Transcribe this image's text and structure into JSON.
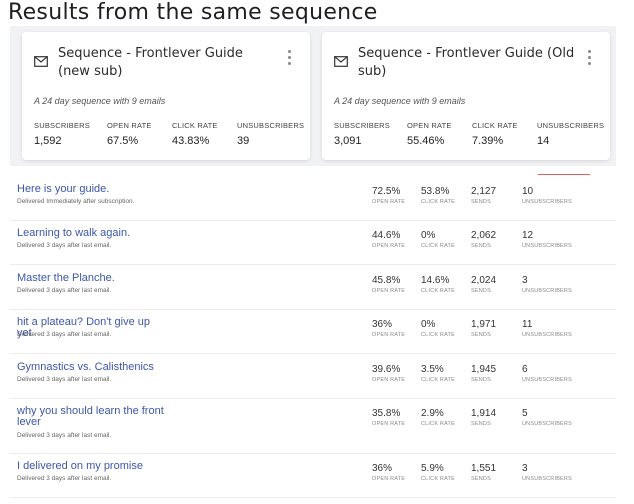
{
  "page": {
    "title": "Results from the same sequence"
  },
  "cards": [
    {
      "icon": "envelope-icon",
      "title": "Sequence - Frontlever Guide (new sub)",
      "description": "A 24 day sequence with 9 emails",
      "metrics": [
        {
          "label": "SUBSCRIBERS",
          "value": "1,592"
        },
        {
          "label": "OPEN RATE",
          "value": "67.5%"
        },
        {
          "label": "CLICK RATE",
          "value": "43.83%"
        },
        {
          "label": "UNSUBSCRIBERS",
          "value": "39"
        }
      ]
    },
    {
      "icon": "envelope-icon",
      "title": "Sequence - Frontlever Guide (Old sub)",
      "description": "A 24 day sequence with 9 emails",
      "metrics": [
        {
          "label": "SUBSCRIBERS",
          "value": "3,091"
        },
        {
          "label": "OPEN RATE",
          "value": "55.46%"
        },
        {
          "label": "CLICK RATE",
          "value": "7.39%"
        },
        {
          "label": "UNSUBSCRIBERS",
          "value": "14"
        }
      ]
    }
  ],
  "stat_labels": {
    "open": "OPEN RATE",
    "click": "CLICK RATE",
    "sends": "SENDS",
    "unsub": "UNSUBSCRIBERS"
  },
  "emails": [
    {
      "subject": "Here is your guide.",
      "delivered": "Delivered Immediately after subscription.",
      "open": "72.5%",
      "click": "53.8%",
      "sends": "2,127",
      "unsub": "10"
    },
    {
      "subject": "Learning to walk again.",
      "delivered": "Delivered 3 days after last email.",
      "open": "44.6%",
      "click": "0%",
      "sends": "2,062",
      "unsub": "12"
    },
    {
      "subject": "Master the Planche.",
      "delivered": "Delivered 3 days after last email.",
      "open": "45.8%",
      "click": "14.6%",
      "sends": "2,024",
      "unsub": "3"
    },
    {
      "subject": "hit a plateau? Don't give up yet",
      "delivered": "Delivered 3 days after last email.",
      "open": "36%",
      "click": "0%",
      "sends": "1,971",
      "unsub": "11"
    },
    {
      "subject": "Gymnastics vs. Calisthenics",
      "delivered": "Delivered 3 days after last email.",
      "open": "39.6%",
      "click": "3.5%",
      "sends": "1,945",
      "unsub": "6"
    },
    {
      "subject": "why you should learn the front lever",
      "delivered": "Delivered 3 days after last email.",
      "open": "35.8%",
      "click": "2.9%",
      "sends": "1,914",
      "unsub": "5"
    },
    {
      "subject": "I delivered on my promise",
      "delivered": "Delivered 3 days after last email.",
      "open": "36%",
      "click": "5.9%",
      "sends": "1,551",
      "unsub": "3"
    }
  ]
}
